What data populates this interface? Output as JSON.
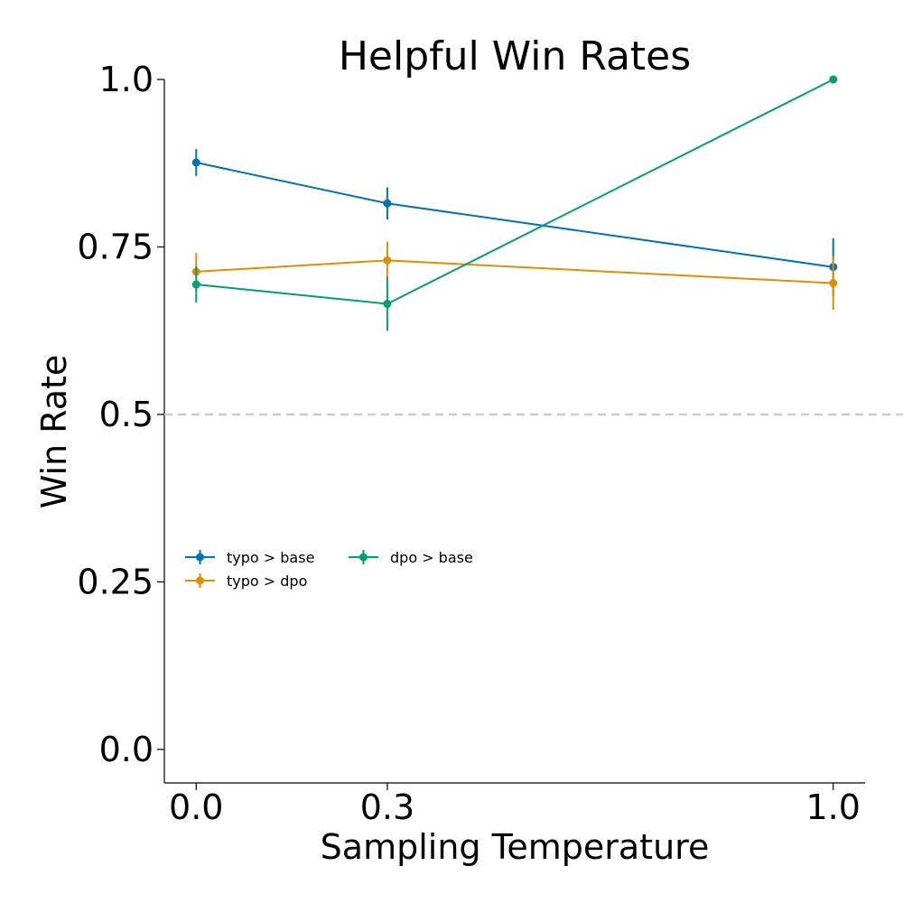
{
  "chart_data": {
    "type": "line",
    "title": "Helpful Win Rates",
    "xlabel": "Sampling Temperature",
    "ylabel": "Win Rate",
    "x": [
      0.0,
      0.3,
      1.0
    ],
    "x_tick_labels": [
      "0.0",
      "0.3",
      "1.0"
    ],
    "y_ticks": [
      0.0,
      0.25,
      0.5,
      0.75,
      1.0
    ],
    "y_tick_labels": [
      "0.0",
      "0.25",
      "0.5",
      "0.75",
      "1.0"
    ],
    "xlim": [
      -0.05,
      1.05
    ],
    "ylim": [
      -0.05,
      1.0
    ],
    "reference_line": {
      "y": 0.5,
      "style": "dashed",
      "color": "#cccccc"
    },
    "grid": false,
    "legend": {
      "placement": "center-left",
      "columns": 2
    },
    "series": [
      {
        "name": "typo > base",
        "color": "#0173b2",
        "values": [
          0.876,
          0.815,
          0.72
        ],
        "errors": [
          0.02,
          0.024,
          0.043
        ]
      },
      {
        "name": "typo > dpo",
        "color": "#de8f05",
        "values": [
          0.713,
          0.73,
          0.696
        ],
        "errors": [
          0.028,
          0.028,
          0.04
        ]
      },
      {
        "name": "dpo > base",
        "color": "#029e73",
        "values": [
          0.694,
          0.665,
          1.0
        ],
        "errors": [
          0.027,
          0.04,
          0.0
        ]
      }
    ]
  }
}
